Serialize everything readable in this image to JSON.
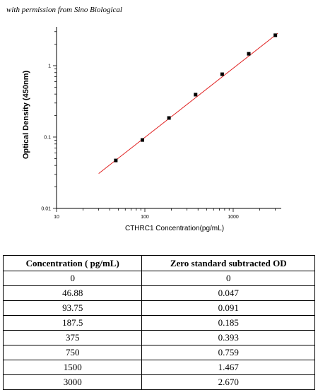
{
  "credit": "with permission from Sino Biological",
  "chart_data": {
    "type": "scatter",
    "xlabel": "CTHRC1  Concentration(pg/mL)",
    "ylabel": "Optical Density (450nm)",
    "x_scale": "log",
    "y_scale": "log",
    "xlim": [
      10,
      3500
    ],
    "ylim": [
      0.01,
      3.5
    ],
    "x_ticks": [
      10,
      100,
      1000
    ],
    "x_tick_labels": [
      "10",
      "100",
      "1000"
    ],
    "y_ticks": [
      0.01,
      0.1,
      1
    ],
    "y_tick_labels": [
      "0.01",
      "0.1",
      "1"
    ],
    "grid": false,
    "series": [
      {
        "color": "#000000",
        "x": [
          46.88,
          93.75,
          187.5,
          375,
          750,
          1500,
          3000
        ],
        "y": [
          0.047,
          0.091,
          0.185,
          0.393,
          0.759,
          1.467,
          2.67
        ]
      }
    ],
    "fit_line": {
      "color": "#e02020",
      "x": [
        30,
        3200
      ],
      "y": [
        0.0308,
        2.84
      ]
    }
  },
  "table": {
    "headers": [
      "Concentration ( pg/mL)",
      "Zero standard subtracted OD"
    ],
    "rows": [
      [
        "0",
        "0"
      ],
      [
        "46.88",
        "0.047"
      ],
      [
        "93.75",
        "0.091"
      ],
      [
        "187.5",
        "0.185"
      ],
      [
        "375",
        "0.393"
      ],
      [
        "750",
        "0.759"
      ],
      [
        "1500",
        "1.467"
      ],
      [
        "3000",
        "2.670"
      ]
    ]
  }
}
